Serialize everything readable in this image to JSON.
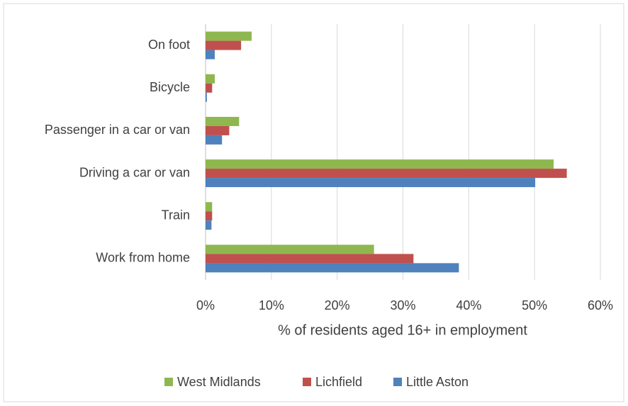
{
  "chart_data": {
    "type": "hbar",
    "categories": [
      "On foot",
      "Bicycle",
      "Passenger in a car or van",
      "Driving a car or van",
      "Train",
      "Work from home"
    ],
    "series": [
      {
        "name": "West Midlands",
        "color": "#8fb74f",
        "values": [
          7.0,
          1.4,
          5.1,
          52.9,
          1.0,
          25.6
        ]
      },
      {
        "name": "Lichfield",
        "color": "#c0504d",
        "values": [
          5.4,
          1.0,
          3.6,
          54.9,
          1.0,
          31.6
        ]
      },
      {
        "name": "Little Aston",
        "color": "#4f81bd",
        "values": [
          1.4,
          0.2,
          2.5,
          50.1,
          0.9,
          38.5
        ]
      }
    ],
    "xlim": [
      0,
      60
    ],
    "xticks": [
      {
        "value": 0,
        "label": "0%"
      },
      {
        "value": 10,
        "label": "10%"
      },
      {
        "value": 20,
        "label": "20%"
      },
      {
        "value": 30,
        "label": "30%"
      },
      {
        "value": 40,
        "label": "40%"
      },
      {
        "value": 50,
        "label": "50%"
      },
      {
        "value": 60,
        "label": "60%"
      }
    ],
    "x_label": "% of residents aged 16+ in employment",
    "grid": true,
    "legend": "bottom"
  }
}
